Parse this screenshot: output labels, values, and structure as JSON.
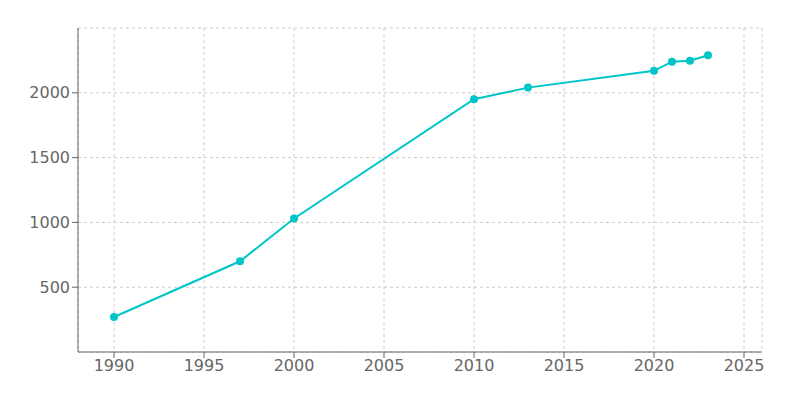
{
  "chart_data": {
    "type": "line",
    "x": [
      1990,
      1997,
      2000,
      2010,
      2013,
      2020,
      2021,
      2022,
      2023
    ],
    "values": [
      270,
      700,
      1030,
      1950,
      2040,
      2170,
      2240,
      2248,
      2290
    ],
    "color": "#00C5C8",
    "marker": "o",
    "xlim": [
      1988,
      2026
    ],
    "ylim": [
      0,
      2500
    ],
    "xticks": [
      1990,
      1995,
      2000,
      2005,
      2010,
      2015,
      2020,
      2025
    ],
    "yticks": [
      500,
      1000,
      1500,
      2000
    ],
    "grid": true
  }
}
